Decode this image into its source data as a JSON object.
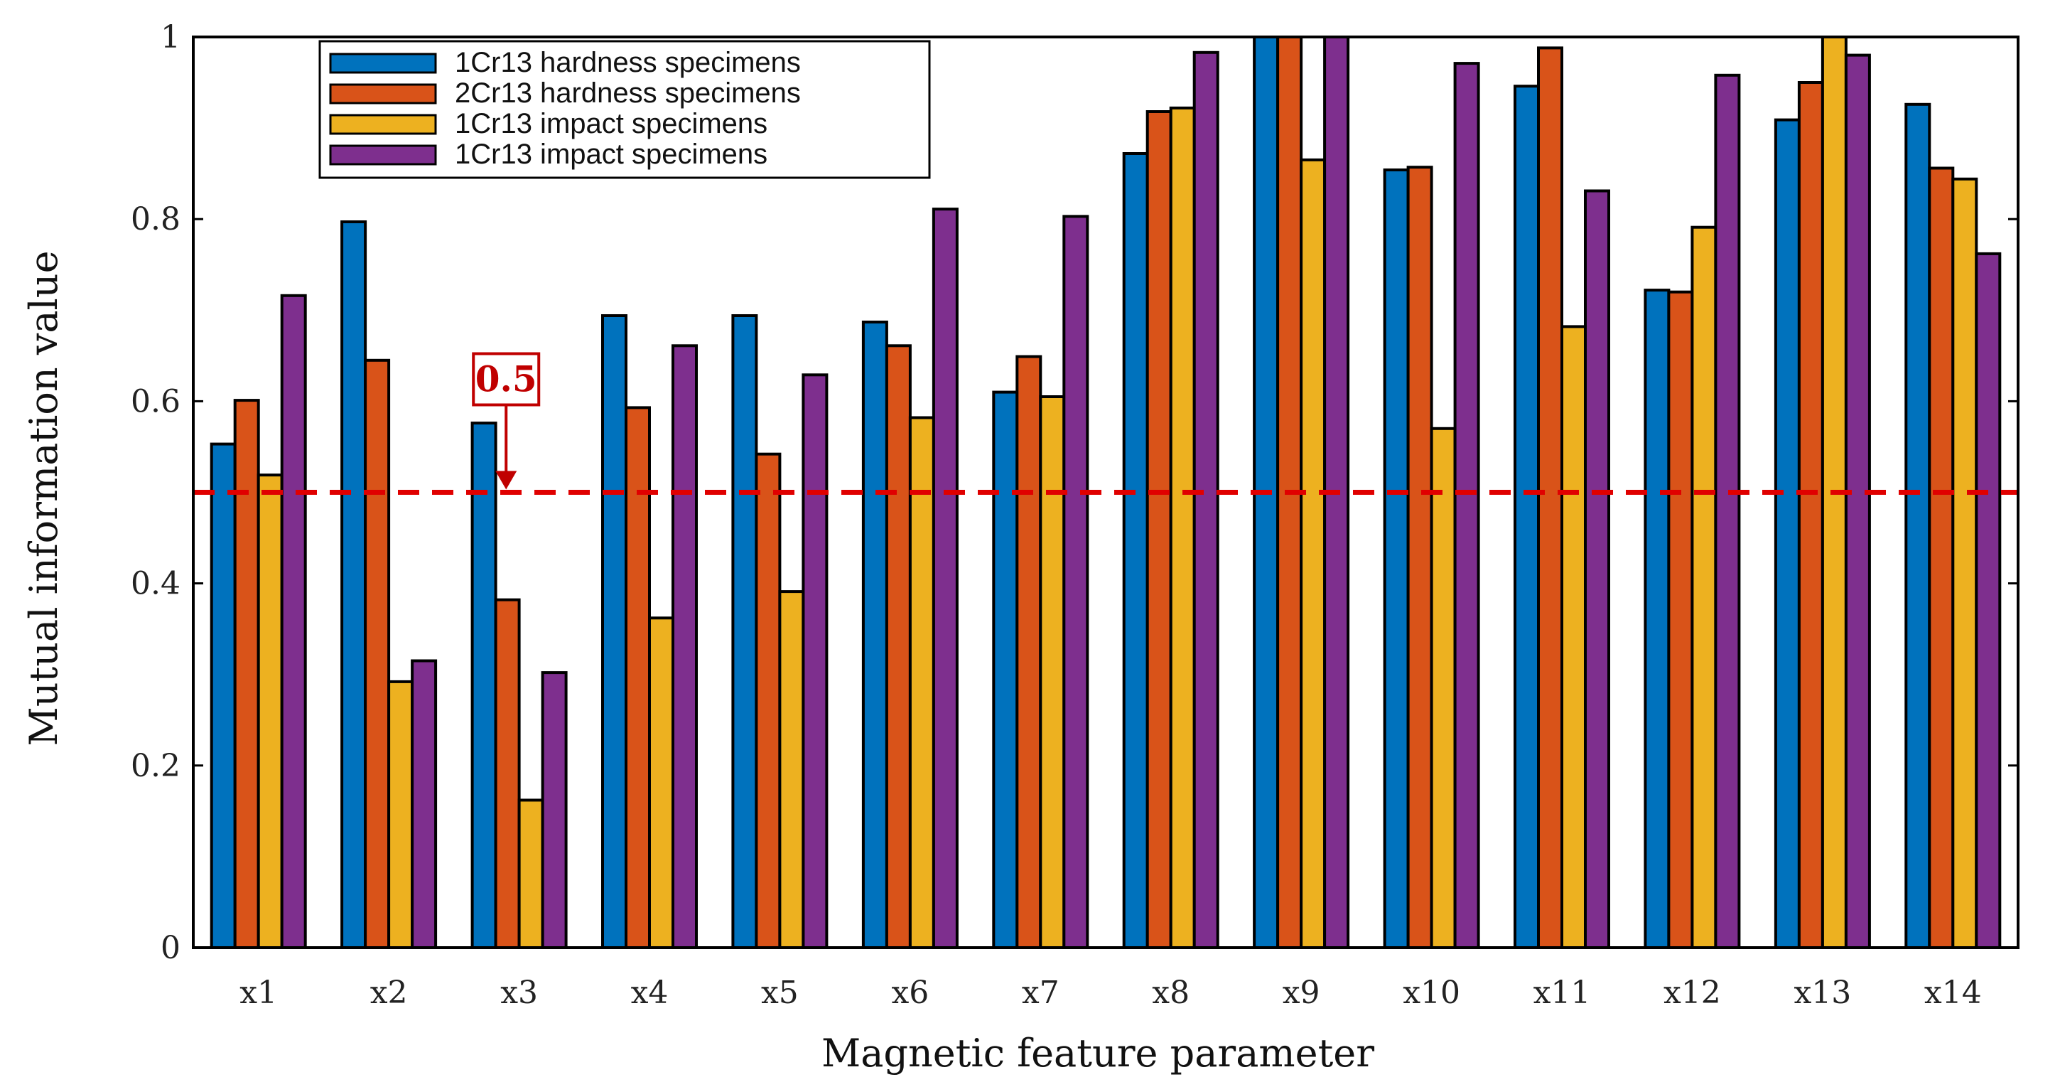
{
  "chart_data": {
    "type": "bar",
    "title": "",
    "xlabel": "Magnetic feature parameter",
    "ylabel": "Mutual information value",
    "ylim": [
      0,
      1
    ],
    "yticks": [
      0,
      0.2,
      0.4,
      0.6,
      0.8,
      1
    ],
    "ytick_labels": [
      "0",
      "0.2",
      "0.4",
      "0.6",
      "0.8",
      "1"
    ],
    "categories": [
      "x1",
      "x2",
      "x3",
      "x4",
      "x5",
      "x6",
      "x7",
      "x8",
      "x9",
      "x10",
      "x11",
      "x12",
      "x13",
      "x14"
    ],
    "series": [
      {
        "name": "1Cr13 hardness specimens",
        "color": "#0072BD",
        "values": [
          0.553,
          0.797,
          0.576,
          0.694,
          0.694,
          0.687,
          0.61,
          0.872,
          1.0,
          0.854,
          0.946,
          0.722,
          0.909,
          0.926
        ]
      },
      {
        "name": "2Cr13 hardness specimens",
        "color": "#D95319",
        "values": [
          0.601,
          0.645,
          0.382,
          0.593,
          0.542,
          0.661,
          0.649,
          0.918,
          1.0,
          0.857,
          0.988,
          0.72,
          0.95,
          0.856
        ]
      },
      {
        "name": "1Cr13 impact specimens",
        "color": "#EDB120",
        "values": [
          0.519,
          0.292,
          0.162,
          0.362,
          0.391,
          0.582,
          0.605,
          0.922,
          0.865,
          0.57,
          0.682,
          0.791,
          1.0,
          0.844
        ]
      },
      {
        "name": "1Cr13 impact specimens",
        "color": "#7E2F8E",
        "values": [
          0.716,
          0.315,
          0.302,
          0.661,
          0.629,
          0.811,
          0.803,
          0.983,
          1.0,
          0.971,
          0.831,
          0.958,
          0.98,
          0.762
        ]
      }
    ],
    "threshold": {
      "value": 0.5,
      "label": "0.5",
      "color": "#e00000",
      "style": "dashed"
    },
    "legend": {
      "position": "top-left"
    },
    "grid": false
  }
}
